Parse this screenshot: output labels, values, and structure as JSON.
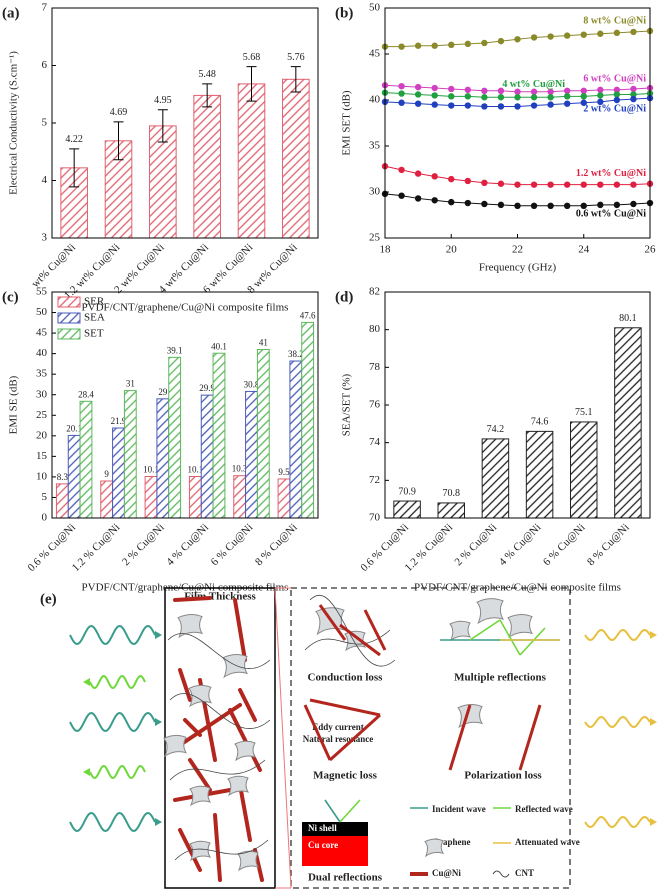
{
  "chart_data": [
    {
      "type": "bar",
      "label": "(a)",
      "ylabel": "Electrical Conductivity (S.cm⁻¹)",
      "xlabel": "PVDF/CNT/graphene/Cu@Ni composite films",
      "categories": [
        "wt% Cu@Ni",
        "1.2 wt% Cu@Ni",
        "2 wt% Cu@Ni",
        "4 wt% Cu@Ni",
        "6 wt% Cu@Ni",
        "8 wt% Cu@Ni"
      ],
      "values": [
        4.22,
        4.69,
        4.95,
        5.48,
        5.68,
        5.76
      ],
      "errors": [
        0.33,
        0.33,
        0.28,
        0.2,
        0.3,
        0.22
      ],
      "color": "#e0606e",
      "ylim": [
        3,
        7
      ],
      "yticks": [
        3,
        4,
        5,
        6,
        7
      ]
    },
    {
      "type": "line",
      "label": "(b)",
      "ylabel": "EMI SET (dB)",
      "xlabel": "Frequency (GHz)",
      "x": [
        18,
        18.5,
        19,
        19.5,
        20,
        20.5,
        21,
        21.5,
        22,
        22.5,
        23,
        23.5,
        24,
        24.5,
        25,
        25.5,
        26
      ],
      "series": [
        {
          "name": "8 wt% Cu@Ni",
          "color": "#8a8a2a",
          "values": [
            45.8,
            45.8,
            45.9,
            45.9,
            46.0,
            46.1,
            46.2,
            46.4,
            46.6,
            46.8,
            46.9,
            47.0,
            47.1,
            47.2,
            47.3,
            47.4,
            47.5
          ]
        },
        {
          "name": "6 wt% Cu@Ni",
          "color": "#d040c0",
          "values": [
            41.6,
            41.5,
            41.4,
            41.3,
            41.2,
            41.1,
            41.0,
            41.0,
            40.9,
            40.9,
            40.9,
            41.0,
            41.0,
            41.1,
            41.1,
            41.2,
            41.3
          ]
        },
        {
          "name": "4 wt% Cu@Ni",
          "color": "#20a040",
          "values": [
            40.8,
            40.7,
            40.6,
            40.5,
            40.4,
            40.4,
            40.3,
            40.3,
            40.3,
            40.3,
            40.3,
            40.4,
            40.4,
            40.5,
            40.6,
            40.6,
            40.7
          ]
        },
        {
          "name": "2 wt% Cu@Ni",
          "color": "#2040c0",
          "values": [
            39.8,
            39.7,
            39.6,
            39.5,
            39.4,
            39.4,
            39.3,
            39.3,
            39.3,
            39.4,
            39.5,
            39.6,
            39.7,
            39.8,
            40.0,
            40.1,
            40.2
          ]
        },
        {
          "name": "1.2 wt% Cu@Ni",
          "color": "#e02040",
          "values": [
            32.8,
            32.4,
            32.0,
            31.7,
            31.4,
            31.2,
            31.0,
            30.9,
            30.8,
            30.8,
            30.8,
            30.8,
            30.8,
            30.8,
            30.8,
            30.8,
            30.9
          ]
        },
        {
          "name": "0.6 wt% Cu@Ni",
          "color": "#111111",
          "values": [
            29.8,
            29.6,
            29.3,
            29.1,
            28.9,
            28.8,
            28.7,
            28.6,
            28.5,
            28.5,
            28.5,
            28.5,
            28.5,
            28.6,
            28.6,
            28.7,
            28.8
          ]
        }
      ],
      "xlim": [
        18,
        26
      ],
      "xticks": [
        18,
        20,
        22,
        24,
        26
      ],
      "ylim": [
        25,
        50
      ],
      "yticks": [
        25,
        30,
        35,
        40,
        45,
        50
      ]
    },
    {
      "type": "bar",
      "label": "(c)",
      "ylabel": "EMI SE (dB)",
      "xlabel": "PVDF/CNT/graphene/Cu@Ni composite films",
      "categories": [
        "0.6 % Cu@Ni",
        "1.2 % Cu@Ni",
        "2 % Cu@Ni",
        "4 % Cu@Ni",
        "6 % Cu@Ni",
        "8 % Cu@Ni"
      ],
      "series": [
        {
          "name": "SER",
          "color": "#e0606e",
          "values": [
            8.3,
            9,
            10.1,
            10.1,
            10.3,
            9.5
          ]
        },
        {
          "name": "SEA",
          "color": "#4a5ab8",
          "values": [
            20.1,
            21.9,
            29,
            29.9,
            30.8,
            38.2
          ]
        },
        {
          "name": "SET",
          "color": "#5cb85c",
          "values": [
            28.4,
            31,
            39.1,
            40.1,
            41,
            47.6
          ]
        }
      ],
      "legend": "upper left",
      "ylim": [
        0,
        55
      ],
      "yticks": [
        0,
        5,
        10,
        15,
        20,
        25,
        30,
        35,
        40,
        45,
        50,
        55
      ]
    },
    {
      "type": "bar",
      "label": "(d)",
      "ylabel": "SEA/SET (%)",
      "xlabel": "PVDF/CNT/graphene/Cu@Ni composite films",
      "categories": [
        "0.6 % Cu@Ni",
        "1.2 % Cu@Ni",
        "2 % Cu@Ni",
        "4 % Cu@Ni",
        "6 % Cu@Ni",
        "8 % Cu@Ni"
      ],
      "values": [
        70.9,
        70.8,
        74.2,
        74.6,
        75.1,
        80.1
      ],
      "color": "#222222",
      "ylim": [
        70,
        82
      ],
      "yticks": [
        70,
        72,
        74,
        76,
        78,
        80,
        82
      ]
    }
  ],
  "diagram": {
    "label": "(e)",
    "film_thickness": "Film Thickness",
    "conduction_loss": "Conduction loss",
    "multiple_reflections": "Multiple reflections",
    "eddy_current": "Eddy current",
    "natural_resonance": "Natural resonance",
    "magnetic_loss": "Magnetic loss",
    "polarization_loss": "Polarization loss",
    "ni_shell": "Ni shell",
    "cu_core": "Cu core",
    "dual_reflections": "Dual reflections",
    "legend": {
      "incident": "Incident wave",
      "reflected": "Reflected wave",
      "graphene": "Graphene",
      "attenuated": "Attenuated wave",
      "cuni": "Cu@Ni",
      "cnt": "CNT"
    }
  }
}
